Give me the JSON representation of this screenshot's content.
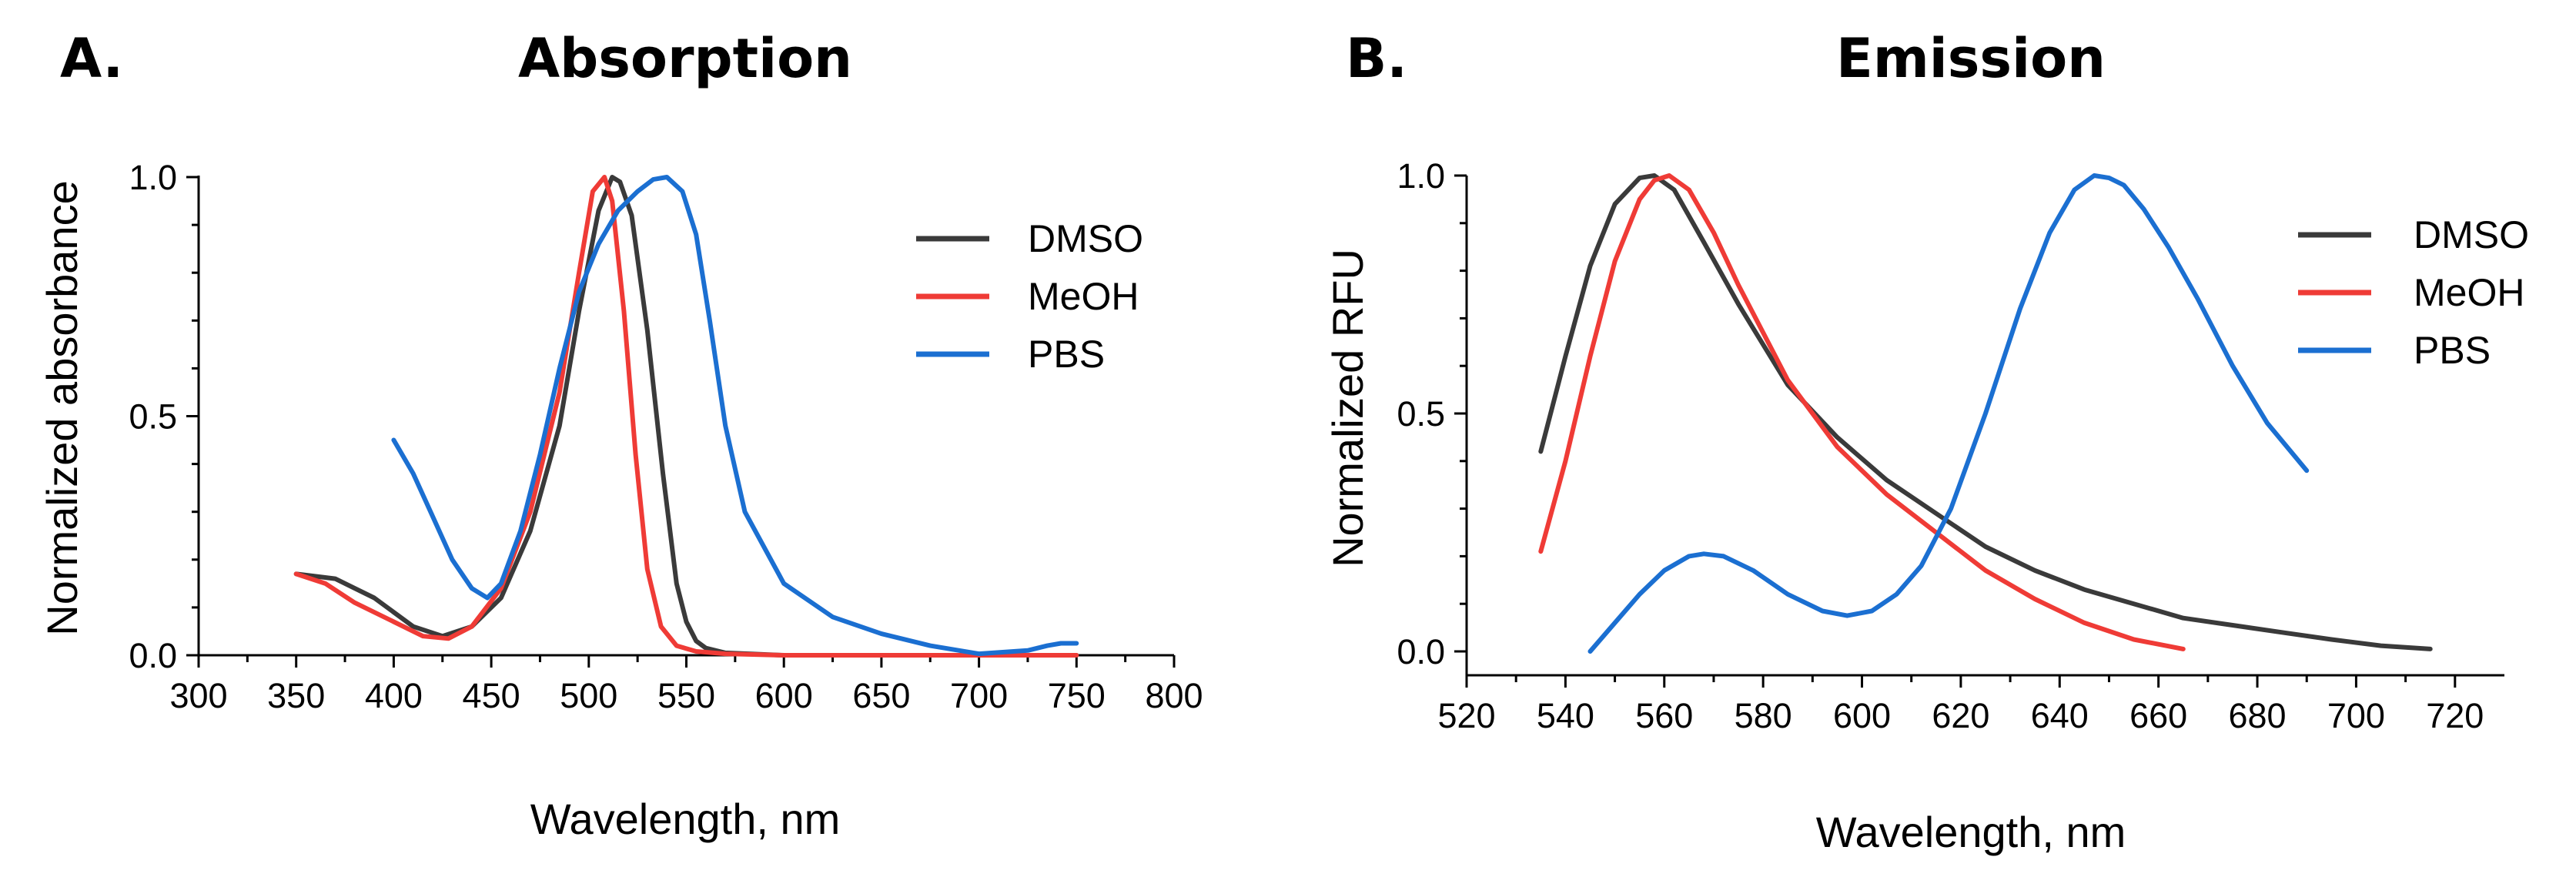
{
  "chart_data": [
    {
      "type": "line",
      "panel_label": "A.",
      "title": "Absorption",
      "xlabel": "Wavelength, nm",
      "ylabel": "Normalized absorbance",
      "xlim": [
        300,
        800
      ],
      "ylim": [
        0,
        1.0
      ],
      "xticks": [
        "300",
        "350",
        "400",
        "450",
        "500",
        "550",
        "600",
        "650",
        "700",
        "750",
        "800"
      ],
      "yticks": [
        "0.0",
        "0.5",
        "1.0"
      ],
      "legend_position": "top-right",
      "series": [
        {
          "name": "DMSO",
          "color": "#3a3a3a",
          "x": [
            350,
            370,
            390,
            410,
            425,
            440,
            455,
            470,
            485,
            495,
            505,
            512,
            516,
            522,
            530,
            538,
            545,
            550,
            555,
            560,
            570,
            600,
            650,
            700,
            750
          ],
          "y": [
            0.17,
            0.16,
            0.12,
            0.06,
            0.04,
            0.06,
            0.12,
            0.26,
            0.48,
            0.72,
            0.93,
            1.0,
            0.99,
            0.92,
            0.68,
            0.38,
            0.15,
            0.07,
            0.03,
            0.015,
            0.005,
            0.0,
            0.0,
            0.0,
            0.0
          ]
        },
        {
          "name": "MeOH",
          "color": "#ef3b36",
          "x": [
            350,
            365,
            380,
            400,
            415,
            428,
            440,
            455,
            470,
            485,
            495,
            502,
            508,
            512,
            518,
            524,
            530,
            537,
            545,
            555,
            570,
            600,
            650,
            700,
            750
          ],
          "y": [
            0.17,
            0.15,
            0.11,
            0.07,
            0.04,
            0.035,
            0.06,
            0.14,
            0.3,
            0.55,
            0.8,
            0.97,
            1.0,
            0.95,
            0.72,
            0.42,
            0.18,
            0.06,
            0.02,
            0.008,
            0.003,
            0.0,
            0.0,
            0.0,
            0.0
          ]
        },
        {
          "name": "PBS",
          "color": "#1b6fd1",
          "x": [
            400,
            410,
            420,
            430,
            440,
            448,
            455,
            465,
            475,
            485,
            495,
            505,
            515,
            525,
            533,
            540,
            548,
            555,
            562,
            570,
            580,
            600,
            625,
            650,
            675,
            700,
            725,
            735,
            742,
            750
          ],
          "y": [
            0.45,
            0.38,
            0.29,
            0.2,
            0.14,
            0.12,
            0.15,
            0.26,
            0.42,
            0.6,
            0.76,
            0.86,
            0.93,
            0.97,
            0.995,
            1.0,
            0.97,
            0.88,
            0.7,
            0.48,
            0.3,
            0.15,
            0.08,
            0.045,
            0.02,
            0.003,
            0.01,
            0.02,
            0.025,
            0.025
          ]
        }
      ]
    },
    {
      "type": "line",
      "panel_label": "B.",
      "title": "Emission",
      "xlabel": "Wavelength, nm",
      "ylabel": "Normalized RFU",
      "xlim": [
        520,
        730
      ],
      "ylim": [
        0,
        1.0
      ],
      "xticks": [
        "520",
        "540",
        "560",
        "580",
        "600",
        "620",
        "640",
        "660",
        "680",
        "700",
        "720"
      ],
      "yticks": [
        "0.0",
        "0.5",
        "1.0"
      ],
      "legend_position": "top-right",
      "series": [
        {
          "name": "DMSO",
          "color": "#3a3a3a",
          "x": [
            535,
            540,
            545,
            550,
            555,
            558,
            562,
            568,
            575,
            585,
            595,
            605,
            615,
            625,
            635,
            645,
            655,
            665,
            675,
            685,
            695,
            705,
            715
          ],
          "y": [
            0.42,
            0.62,
            0.81,
            0.94,
            0.995,
            1.0,
            0.97,
            0.86,
            0.73,
            0.56,
            0.45,
            0.36,
            0.29,
            0.22,
            0.17,
            0.13,
            0.1,
            0.07,
            0.055,
            0.04,
            0.025,
            0.012,
            0.005
          ]
        },
        {
          "name": "MeOH",
          "color": "#ef3b36",
          "x": [
            535,
            540,
            545,
            550,
            555,
            558,
            561,
            565,
            570,
            575,
            585,
            595,
            605,
            615,
            625,
            635,
            645,
            655,
            665
          ],
          "y": [
            0.21,
            0.4,
            0.62,
            0.82,
            0.95,
            0.99,
            1.0,
            0.97,
            0.88,
            0.77,
            0.57,
            0.43,
            0.33,
            0.25,
            0.17,
            0.11,
            0.06,
            0.025,
            0.005
          ]
        },
        {
          "name": "PBS",
          "color": "#1b6fd1",
          "x": [
            545,
            550,
            555,
            560,
            565,
            568,
            572,
            578,
            585,
            592,
            597,
            602,
            607,
            612,
            618,
            625,
            632,
            638,
            643,
            647,
            650,
            653,
            657,
            662,
            668,
            675,
            682,
            690
          ],
          "y": [
            0.0,
            0.06,
            0.12,
            0.17,
            0.2,
            0.205,
            0.2,
            0.17,
            0.12,
            0.085,
            0.075,
            0.085,
            0.12,
            0.18,
            0.3,
            0.5,
            0.72,
            0.88,
            0.97,
            1.0,
            0.995,
            0.98,
            0.93,
            0.85,
            0.74,
            0.6,
            0.48,
            0.38
          ]
        }
      ]
    }
  ]
}
